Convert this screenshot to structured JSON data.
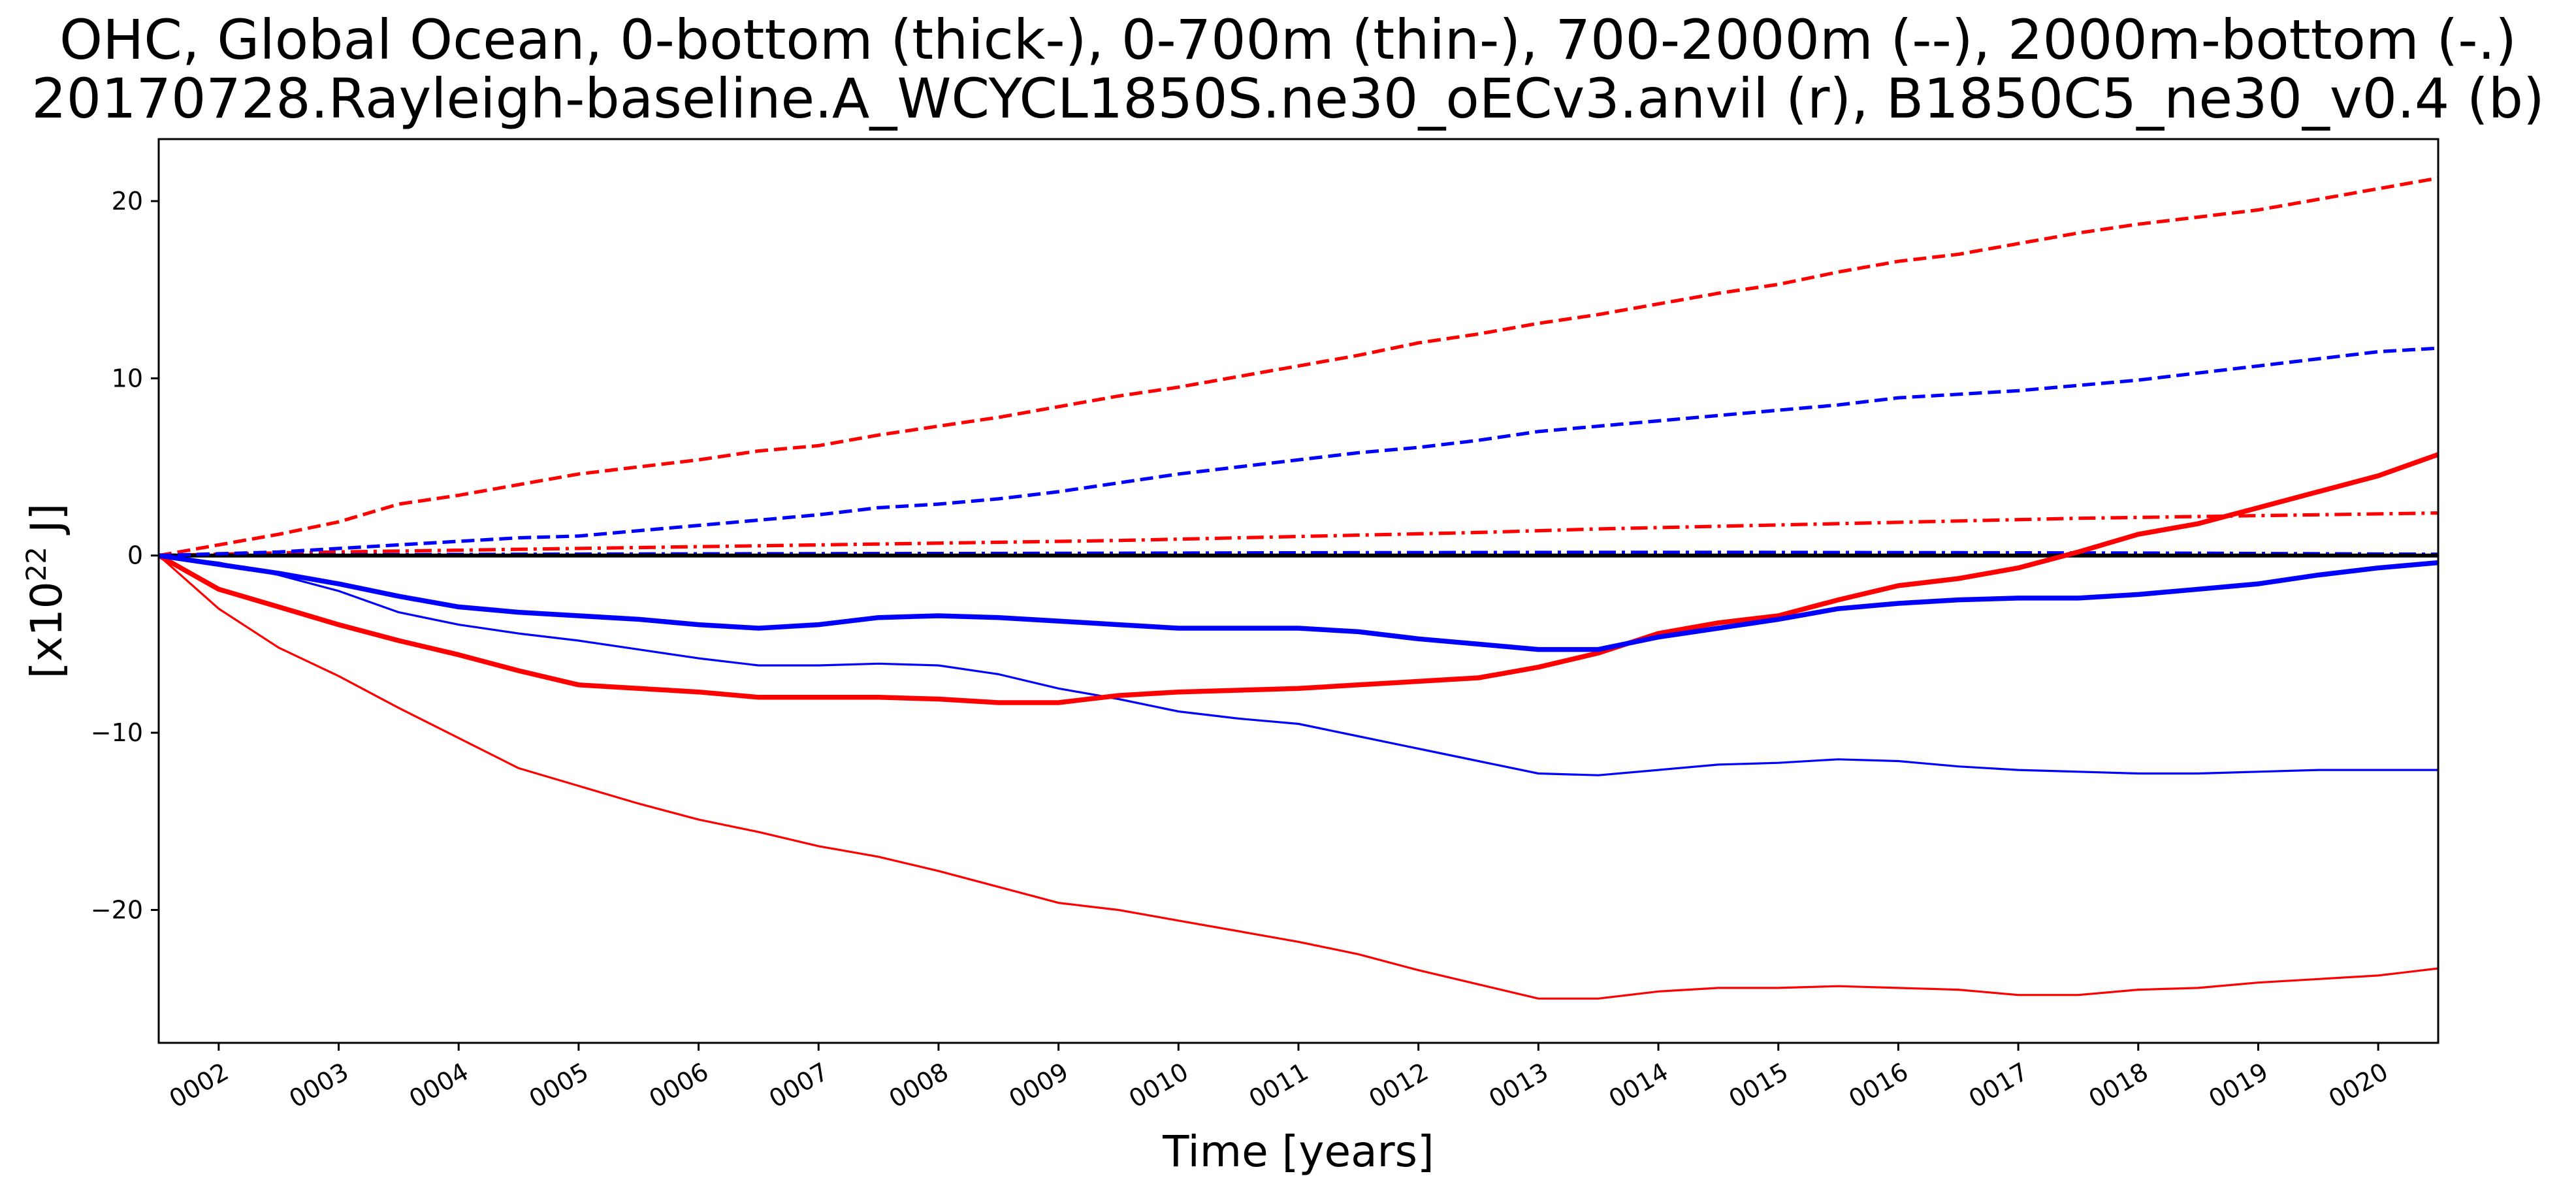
{
  "chart_data": {
    "type": "line",
    "title_lines": [
      "OHC, Global Ocean, 0-bottom (thick-), 0-700m (thin-), 700-2000m (--), 2000m-bottom (-.)",
      "20170728.Rayleigh-baseline.A_WCYCL1850S.ne30_oECv3.anvil (r), B1850C5_ne30_v0.4 (b)"
    ],
    "xlabel": "Time [years]",
    "ylabel_base": "[x10",
    "ylabel_exp": "22",
    "ylabel_tail": " J]",
    "xlim": [
      1.5,
      20.5
    ],
    "ylim": [
      -27.5,
      23.5
    ],
    "x_ticks": [
      2,
      3,
      4,
      5,
      6,
      7,
      8,
      9,
      10,
      11,
      12,
      13,
      14,
      15,
      16,
      17,
      18,
      19,
      20
    ],
    "x_tick_labels": [
      "0002",
      "0003",
      "0004",
      "0005",
      "0006",
      "0007",
      "0008",
      "0009",
      "0010",
      "0011",
      "0012",
      "0013",
      "0014",
      "0015",
      "0016",
      "0017",
      "0018",
      "0019",
      "0020"
    ],
    "y_ticks": [
      -20,
      -10,
      0,
      10,
      20
    ],
    "y_tick_labels": [
      "−20",
      "−10",
      "0",
      "10",
      "20"
    ],
    "grid": false,
    "legend": "none",
    "zero_line": {
      "y": 0,
      "color": "#000000"
    },
    "colors": {
      "run_r": "#ff0000",
      "run_b": "#0000ff"
    },
    "series": [
      {
        "run": "r",
        "layer": "0-bottom",
        "style": "thick",
        "color": "#ff0000",
        "x": [
          1.5,
          2,
          2.5,
          3,
          3.5,
          4,
          4.5,
          5,
          5.5,
          6,
          6.5,
          7,
          7.5,
          8,
          8.5,
          9,
          9.5,
          10,
          10.5,
          11,
          11.5,
          12,
          12.5,
          13,
          13.5,
          14,
          14.5,
          15,
          15.5,
          16,
          16.5,
          17,
          17.5,
          18,
          18.5,
          19,
          19.5,
          20,
          20.5
        ],
        "y": [
          0,
          -1.9,
          -2.9,
          -3.9,
          -4.8,
          -5.6,
          -6.5,
          -7.3,
          -7.5,
          -7.7,
          -8.0,
          -8.0,
          -8.0,
          -8.1,
          -8.3,
          -8.3,
          -7.9,
          -7.7,
          -7.6,
          -7.5,
          -7.3,
          -7.1,
          -6.9,
          -6.3,
          -5.5,
          -4.4,
          -3.8,
          -3.4,
          -2.5,
          -1.7,
          -1.3,
          -0.7,
          0.2,
          1.2,
          1.8,
          2.7,
          3.6,
          4.5,
          5.7
        ]
      },
      {
        "run": "r",
        "layer": "0-700m",
        "style": "thin",
        "color": "#ff0000",
        "x": [
          1.5,
          2,
          2.5,
          3,
          3.5,
          4,
          4.5,
          5,
          5.5,
          6,
          6.5,
          7,
          7.5,
          8,
          8.5,
          9,
          9.5,
          10,
          10.5,
          11,
          11.5,
          12,
          12.5,
          13,
          13.5,
          14,
          14.5,
          15,
          15.5,
          16,
          16.5,
          17,
          17.5,
          18,
          18.5,
          19,
          19.5,
          20,
          20.5
        ],
        "y": [
          0,
          -3.0,
          -5.2,
          -6.8,
          -8.6,
          -10.3,
          -12.0,
          -13.0,
          -14.0,
          -14.9,
          -15.6,
          -16.4,
          -17.0,
          -17.8,
          -18.7,
          -19.6,
          -20.0,
          -20.6,
          -21.2,
          -21.8,
          -22.5,
          -23.4,
          -24.2,
          -25.0,
          -25.0,
          -24.6,
          -24.4,
          -24.4,
          -24.3,
          -24.4,
          -24.5,
          -24.8,
          -24.8,
          -24.5,
          -24.4,
          -24.1,
          -23.9,
          -23.7,
          -23.3
        ]
      },
      {
        "run": "r",
        "layer": "700-2000m",
        "style": "dashed",
        "color": "#ff0000",
        "x": [
          1.5,
          2,
          2.5,
          3,
          3.5,
          4,
          4.5,
          5,
          5.5,
          6,
          6.5,
          7,
          7.5,
          8,
          8.5,
          9,
          9.5,
          10,
          10.5,
          11,
          11.5,
          12,
          12.5,
          13,
          13.5,
          14,
          14.5,
          15,
          15.5,
          16,
          16.5,
          17,
          17.5,
          18,
          18.5,
          19,
          19.5,
          20,
          20.5
        ],
        "y": [
          0,
          0.6,
          1.2,
          1.9,
          2.9,
          3.4,
          4.0,
          4.6,
          5.0,
          5.4,
          5.9,
          6.2,
          6.8,
          7.3,
          7.8,
          8.4,
          9.0,
          9.5,
          10.1,
          10.7,
          11.3,
          12.0,
          12.5,
          13.1,
          13.6,
          14.2,
          14.8,
          15.3,
          16.0,
          16.6,
          17.0,
          17.6,
          18.2,
          18.7,
          19.1,
          19.5,
          20.1,
          20.7,
          21.3
        ]
      },
      {
        "run": "r",
        "layer": "2000m-bottom",
        "style": "dashdot",
        "color": "#ff0000",
        "x": [
          1.5,
          2.5,
          3.5,
          4.5,
          5.5,
          6.5,
          7.5,
          8.5,
          9.5,
          10.5,
          11.5,
          12.5,
          13.5,
          14.5,
          15.5,
          16.5,
          17.5,
          18.5,
          19.5,
          20.5
        ],
        "y": [
          0,
          0.15,
          0.25,
          0.35,
          0.45,
          0.55,
          0.65,
          0.75,
          0.85,
          1.0,
          1.15,
          1.3,
          1.5,
          1.65,
          1.8,
          1.95,
          2.1,
          2.2,
          2.3,
          2.4
        ]
      },
      {
        "run": "b",
        "layer": "0-bottom",
        "style": "thick",
        "color": "#0000ff",
        "x": [
          1.5,
          2,
          2.5,
          3,
          3.5,
          4,
          4.5,
          5,
          5.5,
          6,
          6.5,
          7,
          7.5,
          8,
          8.5,
          9,
          9.5,
          10,
          10.5,
          11,
          11.5,
          12,
          12.5,
          13,
          13.5,
          14,
          14.5,
          15,
          15.5,
          16,
          16.5,
          17,
          17.5,
          18,
          18.5,
          19,
          19.5,
          20,
          20.5
        ],
        "y": [
          0,
          -0.5,
          -1.0,
          -1.6,
          -2.3,
          -2.9,
          -3.2,
          -3.4,
          -3.6,
          -3.9,
          -4.1,
          -3.9,
          -3.5,
          -3.4,
          -3.5,
          -3.7,
          -3.9,
          -4.1,
          -4.1,
          -4.1,
          -4.3,
          -4.7,
          -5.0,
          -5.3,
          -5.3,
          -4.6,
          -4.1,
          -3.6,
          -3.0,
          -2.7,
          -2.5,
          -2.4,
          -2.4,
          -2.2,
          -1.9,
          -1.6,
          -1.1,
          -0.7,
          -0.4
        ]
      },
      {
        "run": "b",
        "layer": "0-700m",
        "style": "thin",
        "color": "#0000ff",
        "x": [
          1.5,
          2,
          2.5,
          3,
          3.5,
          4,
          4.5,
          5,
          5.5,
          6,
          6.5,
          7,
          7.5,
          8,
          8.5,
          9,
          9.5,
          10,
          10.5,
          11,
          11.5,
          12,
          12.5,
          13,
          13.5,
          14,
          14.5,
          15,
          15.5,
          16,
          16.5,
          17,
          17.5,
          18,
          18.5,
          19,
          19.5,
          20,
          20.5
        ],
        "y": [
          0,
          -0.4,
          -1.1,
          -2.0,
          -3.2,
          -3.9,
          -4.4,
          -4.8,
          -5.3,
          -5.8,
          -6.2,
          -6.2,
          -6.1,
          -6.2,
          -6.7,
          -7.5,
          -8.1,
          -8.8,
          -9.2,
          -9.5,
          -10.2,
          -10.9,
          -11.6,
          -12.3,
          -12.4,
          -12.1,
          -11.8,
          -11.7,
          -11.5,
          -11.6,
          -11.9,
          -12.1,
          -12.2,
          -12.3,
          -12.3,
          -12.2,
          -12.1,
          -12.1,
          -12.1
        ]
      },
      {
        "run": "b",
        "layer": "700-2000m",
        "style": "dashed",
        "color": "#0000ff",
        "x": [
          1.5,
          2,
          2.5,
          3,
          3.5,
          4,
          4.5,
          5,
          5.5,
          6,
          6.5,
          7,
          7.5,
          8,
          8.5,
          9,
          9.5,
          10,
          10.5,
          11,
          11.5,
          12,
          12.5,
          13,
          13.5,
          14,
          14.5,
          15,
          15.5,
          16,
          16.5,
          17,
          17.5,
          18,
          18.5,
          19,
          19.5,
          20,
          20.5
        ],
        "y": [
          0,
          0.1,
          0.2,
          0.4,
          0.6,
          0.8,
          1.0,
          1.1,
          1.4,
          1.7,
          2.0,
          2.3,
          2.7,
          2.9,
          3.2,
          3.6,
          4.1,
          4.6,
          5.0,
          5.4,
          5.8,
          6.1,
          6.5,
          7.0,
          7.3,
          7.6,
          7.9,
          8.2,
          8.5,
          8.9,
          9.1,
          9.3,
          9.6,
          9.9,
          10.3,
          10.7,
          11.1,
          11.5,
          11.7
        ]
      },
      {
        "run": "b",
        "layer": "2000m-bottom",
        "style": "dashdot",
        "color": "#0000ff",
        "x": [
          1.5,
          2.5,
          3.5,
          4.5,
          5.5,
          6.5,
          7.5,
          8.5,
          9.5,
          10.5,
          11.5,
          12.5,
          13.5,
          14.5,
          15.5,
          16.5,
          17.5,
          18.5,
          19.5,
          20.5
        ],
        "y": [
          0,
          0.03,
          0.05,
          0.07,
          0.09,
          0.1,
          0.11,
          0.12,
          0.13,
          0.15,
          0.16,
          0.17,
          0.18,
          0.18,
          0.17,
          0.16,
          0.15,
          0.13,
          0.1,
          0.07
        ]
      }
    ]
  }
}
